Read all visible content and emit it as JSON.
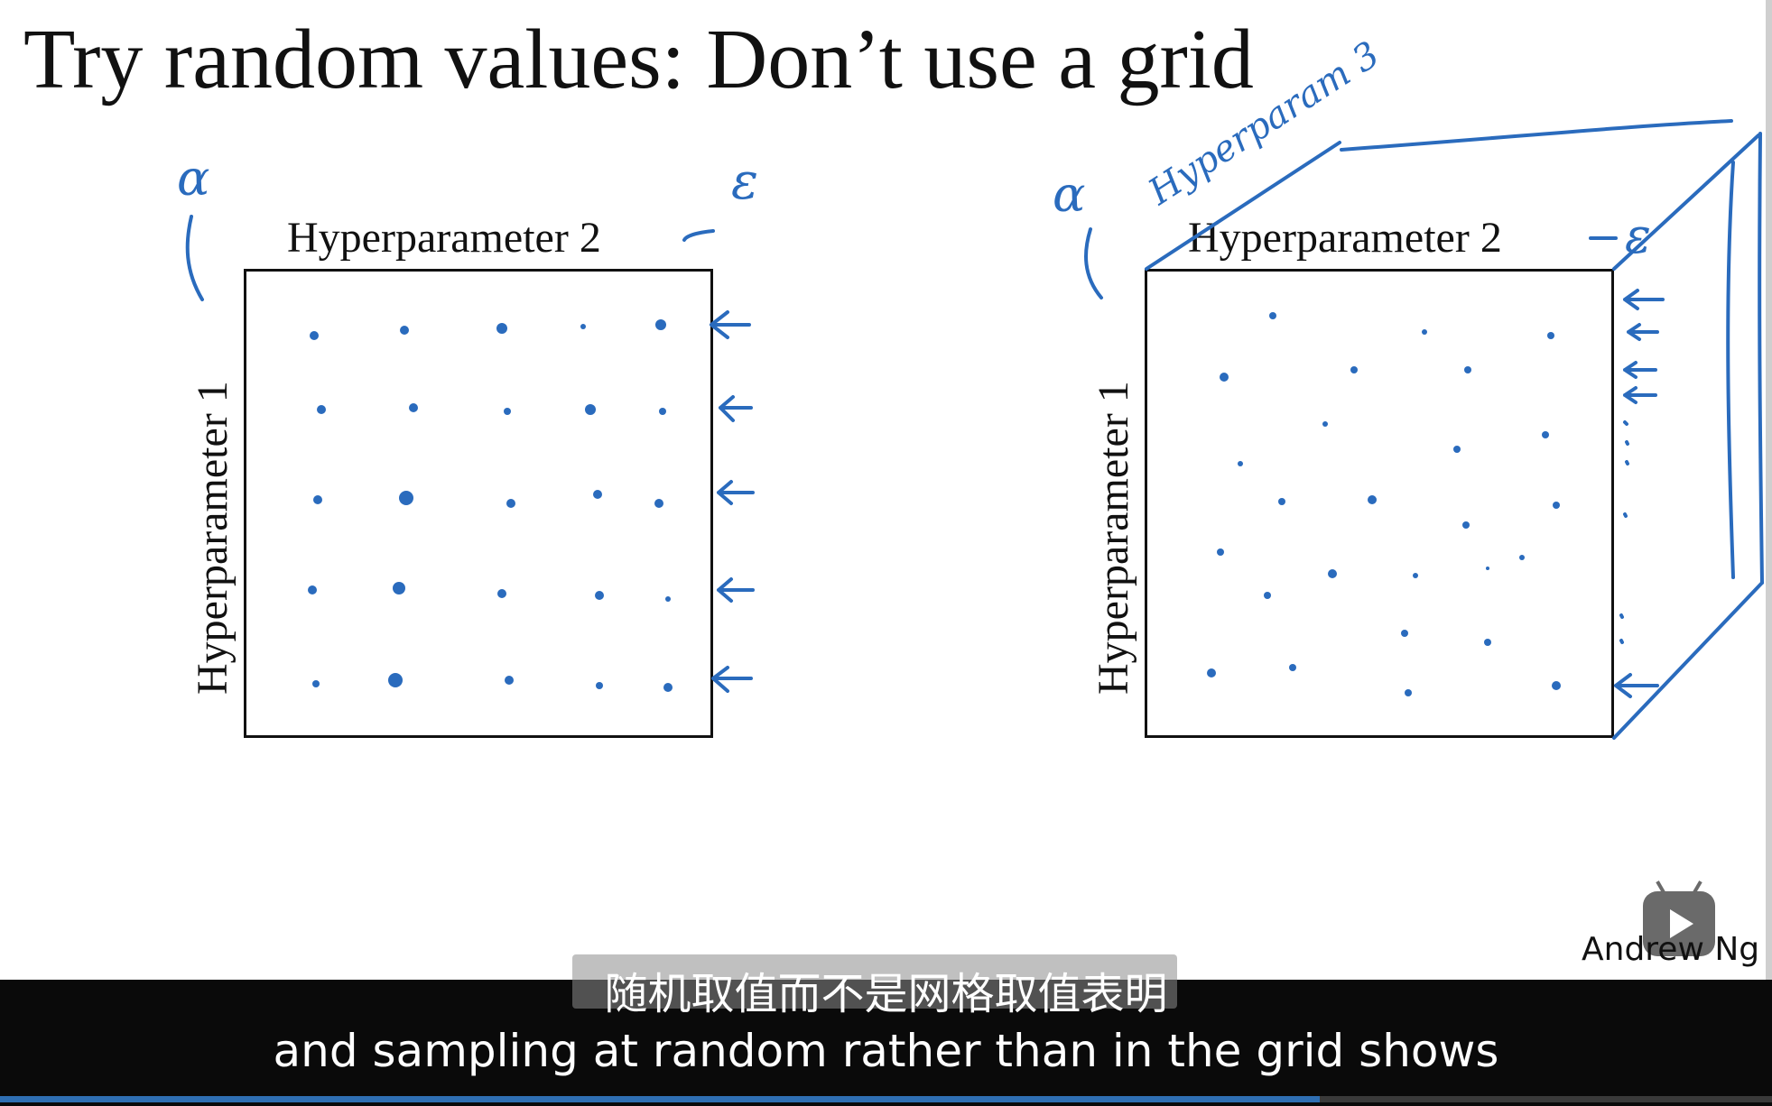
{
  "slide": {
    "title": "Try random values: Don’t use a grid",
    "author": "Andrew Ng"
  },
  "left_panel": {
    "axis_top": "Hyperparameter 2",
    "axis_left": "Hyperparameter 1",
    "annotation_left": "α",
    "annotation_top": "ε"
  },
  "right_panel": {
    "axis_top": "Hyperparameter 2",
    "axis_left": "Hyperparameter 1",
    "annotation_left": "α",
    "annotation_top": "ε",
    "annotation_depth": "Hyperparam 3"
  },
  "subtitles": {
    "chinese": "随机取值而不是网格取值表明",
    "english": "and sampling at random rather than in the grid shows"
  },
  "player": {
    "progress_fraction": 0.745,
    "progress_color": "#2f6fb3",
    "ink_color": "#2a6bbd",
    "logo": "bilibili-tv-icon"
  }
}
